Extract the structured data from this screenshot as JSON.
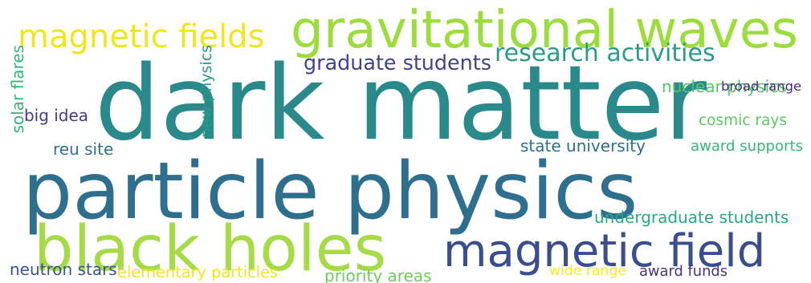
{
  "word_cloud": {
    "background": "#ffffff",
    "words": [
      {
        "text": "dark matter",
        "color": "#2a8a8b",
        "orientation": "horizontal"
      },
      {
        "text": "particle physics",
        "color": "#2f6f8e",
        "orientation": "horizontal"
      },
      {
        "text": "black holes",
        "color": "#a6db47",
        "orientation": "horizontal"
      },
      {
        "text": "gravitational waves",
        "color": "#9ddc3d",
        "orientation": "horizontal"
      },
      {
        "text": "magnetic field",
        "color": "#3a4e8c",
        "orientation": "horizontal"
      },
      {
        "text": "magnetic fields",
        "color": "#f1e51d",
        "orientation": "horizontal"
      },
      {
        "text": "research activities",
        "color": "#2b9a8a",
        "orientation": "horizontal"
      },
      {
        "text": "graduate students",
        "color": "#414487",
        "orientation": "horizontal"
      },
      {
        "text": "nuclear physics",
        "color": "#55c667",
        "orientation": "horizontal"
      },
      {
        "text": "broad range",
        "color": "#482878",
        "orientation": "horizontal"
      },
      {
        "text": "big idea",
        "color": "#443a83",
        "orientation": "horizontal"
      },
      {
        "text": "cosmic rays",
        "color": "#5ec962",
        "orientation": "horizontal"
      },
      {
        "text": "reu site",
        "color": "#2f6f8e",
        "orientation": "horizontal"
      },
      {
        "text": "state university",
        "color": "#2d708e",
        "orientation": "horizontal"
      },
      {
        "text": "award supports",
        "color": "#35b779",
        "orientation": "horizontal"
      },
      {
        "text": "undergraduate students",
        "color": "#26a883",
        "orientation": "horizontal"
      },
      {
        "text": "neutron stars",
        "color": "#39568c",
        "orientation": "horizontal"
      },
      {
        "text": "elementary particles",
        "color": "#f1e51d",
        "orientation": "horizontal"
      },
      {
        "text": "priority areas",
        "color": "#6ccd5a",
        "orientation": "horizontal"
      },
      {
        "text": "wide range",
        "color": "#fde725",
        "orientation": "horizontal"
      },
      {
        "text": "award funds",
        "color": "#46337e",
        "orientation": "horizontal"
      },
      {
        "text": "solar flares",
        "color": "#35b779",
        "orientation": "vertical"
      },
      {
        "text": "new physics",
        "color": "#1f9e89",
        "orientation": "vertical"
      }
    ]
  }
}
